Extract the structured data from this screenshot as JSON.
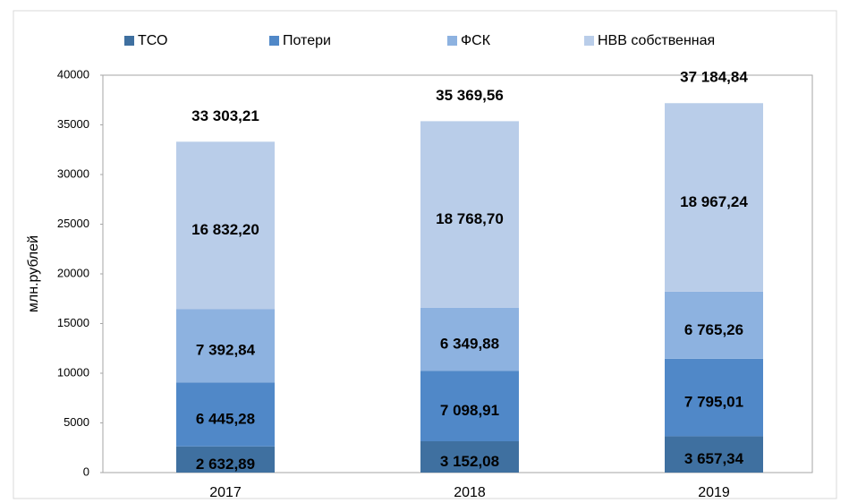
{
  "chart_data": {
    "type": "stacked_bar",
    "y_label": "млн.рублей",
    "categories": [
      "2017",
      "2018",
      "2019"
    ],
    "series": [
      {
        "name": "ТСО",
        "color": "#3f70a0",
        "values": [
          2632.89,
          3152.08,
          3657.34
        ],
        "value_labels": [
          "2 632,89",
          "3 152,08",
          "3 657,34"
        ]
      },
      {
        "name": "Потери",
        "color": "#5088c8",
        "values": [
          6445.28,
          7098.91,
          7795.01
        ],
        "value_labels": [
          "6 445,28",
          "7 098,91",
          "7 795,01"
        ]
      },
      {
        "name": "ФСК",
        "color": "#8db2e0",
        "values": [
          7392.84,
          6349.88,
          6765.26
        ],
        "value_labels": [
          "7 392,84",
          "6 349,88",
          "6 765,26"
        ]
      },
      {
        "name": "НВВ собственная",
        "color": "#b9cde9",
        "values": [
          16832.2,
          18768.7,
          18967.24
        ],
        "value_labels": [
          "16 832,20",
          "18 768,70",
          "18 967,24"
        ]
      }
    ],
    "totals": [
      33303.21,
      35369.56,
      37184.84
    ],
    "total_labels": [
      "33 303,21",
      "35 369,56",
      "37 184,84"
    ],
    "ylim": [
      0,
      40000
    ],
    "yticks": [
      0,
      5000,
      10000,
      15000,
      20000,
      25000,
      30000,
      35000,
      40000
    ],
    "grid": false,
    "legend": "top"
  }
}
